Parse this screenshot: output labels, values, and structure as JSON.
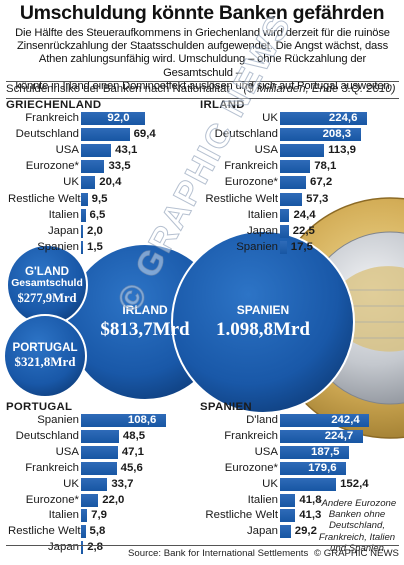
{
  "title": "Umschuldung könnte Banken gefährden",
  "intro": [
    "Die Hälfte des Steueraufkommens in Griechenland wird derzeit für die ruinöse",
    "Zinsenrückzahlung der Staatsschulden aufgewendet. Die Angst wächst, dass",
    "Athen zahlungsunfähig wird. Umschuldung – ohne Rückzahlung der Gesamtschuld –",
    "könnte in Irland einen Dominoeffekt auslösen und sich auf Portugal ausweiten"
  ],
  "subtitle": "Schuldenrisiko der Banken nach Nationalität",
  "unit": "($ Milliarden, Ende 3.Q. 2010)",
  "bubbles": {
    "greece": {
      "name": "G'LAND",
      "label": "Gesamtschuld",
      "total": "$277,9Mrd"
    },
    "portugal": {
      "name": "PORTUGAL",
      "total": "$321,8Mrd"
    },
    "ireland": {
      "name": "IRLAND",
      "total": "$813,7Mrd"
    },
    "spain": {
      "name": "SPANIEN",
      "total": "1.098,8Mrd"
    }
  },
  "footnote": "*Andere Eurozone Banken ohne Deutschland, Frankreich, Italien und Spanien",
  "source": "Source: Bank for International Settlements",
  "credit": "© GRAPHIC NEWS",
  "watermark": "© GRAPHIC NEWS",
  "colors": {
    "bar": "#1e5eab",
    "bubble": "#1a5aa8",
    "bubble_dark": "#0f3f7e",
    "coin_gold": "#c9a24a",
    "coin_silver": "#b8bcc2"
  },
  "chart_data": [
    {
      "type": "bar",
      "orientation": "horizontal",
      "title": "GRIECHENLAND",
      "categories": [
        "Frankreich",
        "Deutschland",
        "USA",
        "Eurozone*",
        "UK",
        "Restliche Welt",
        "Italien",
        "Japan",
        "Spanien"
      ],
      "values": [
        92.0,
        69.4,
        43.1,
        33.5,
        20.4,
        9.5,
        6.5,
        2.0,
        1.5
      ],
      "value_labels": [
        "92,0",
        "69,4",
        "43,1",
        "33,5",
        "20,4",
        "9,5",
        "6,5",
        "2,0",
        "1,5"
      ]
    },
    {
      "type": "bar",
      "orientation": "horizontal",
      "title": "IRLAND",
      "categories": [
        "UK",
        "Deutschland",
        "USA",
        "Frankreich",
        "Eurozone*",
        "Restliche Welt",
        "Italien",
        "Japan",
        "Spanien"
      ],
      "values": [
        224.6,
        208.3,
        113.9,
        78.1,
        67.2,
        57.3,
        24.4,
        22.5,
        17.5
      ],
      "value_labels": [
        "224,6",
        "208,3",
        "113,9",
        "78,1",
        "67,2",
        "57,3",
        "24,4",
        "22,5",
        "17,5"
      ]
    },
    {
      "type": "bar",
      "orientation": "horizontal",
      "title": "PORTUGAL",
      "categories": [
        "Spanien",
        "Deutschland",
        "USA",
        "Frankreich",
        "UK",
        "Eurozone*",
        "Italien",
        "Restliche Welt",
        "Japan"
      ],
      "values": [
        108.6,
        48.5,
        47.1,
        45.6,
        33.7,
        22.0,
        7.9,
        5.8,
        2.8
      ],
      "value_labels": [
        "108,6",
        "48,5",
        "47,1",
        "45,6",
        "33,7",
        "22,0",
        "7,9",
        "5,8",
        "2,8"
      ]
    },
    {
      "type": "bar",
      "orientation": "horizontal",
      "title": "SPANIEN",
      "categories": [
        "D'land",
        "Frankreich",
        "USA",
        "Eurozone*",
        "UK",
        "Italien",
        "Restliche Welt",
        "Japan"
      ],
      "values": [
        242.4,
        224.7,
        187.5,
        179.6,
        152.4,
        41.8,
        41.3,
        29.2
      ],
      "value_labels": [
        "242,4",
        "224,7",
        "187,5",
        "179,6",
        "152,4",
        "41,8",
        "41,3",
        "29,2"
      ]
    }
  ]
}
